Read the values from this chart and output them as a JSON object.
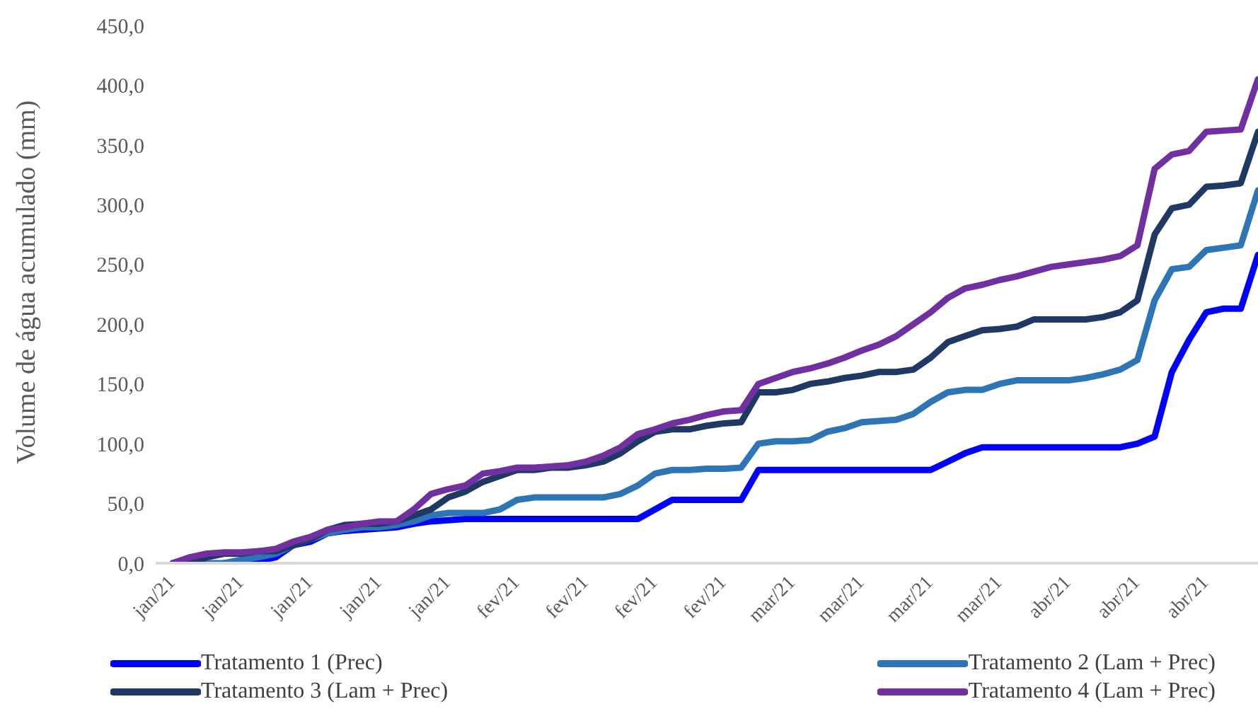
{
  "chart_data": {
    "type": "line",
    "ylabel": "Volume de água acumulado (mm)",
    "categories": [
      "jan/21",
      null,
      null,
      null,
      "jan/21",
      null,
      null,
      null,
      "jan/21",
      null,
      null,
      null,
      "jan/21",
      null,
      null,
      null,
      "jan/21",
      null,
      null,
      null,
      "fev/21",
      null,
      null,
      null,
      "fev/21",
      null,
      null,
      null,
      "fev/21",
      null,
      null,
      null,
      "fev/21",
      null,
      null,
      null,
      "mar/21",
      null,
      null,
      null,
      "mar/21",
      null,
      null,
      null,
      "mar/21",
      null,
      null,
      null,
      "mar/21",
      null,
      null,
      null,
      "abr/21",
      null,
      null,
      null,
      "abr/21",
      null,
      null,
      null,
      "abr/21",
      null,
      null,
      null
    ],
    "ylim": [
      0,
      450
    ],
    "yticks": [
      {
        "value": 0,
        "label": "0,0"
      },
      {
        "value": 50,
        "label": "50,0"
      },
      {
        "value": 100,
        "label": "100,0"
      },
      {
        "value": 150,
        "label": "150,0"
      },
      {
        "value": 200,
        "label": "200,0"
      },
      {
        "value": 250,
        "label": "250,0"
      },
      {
        "value": 300,
        "label": "300,0"
      },
      {
        "value": 350,
        "label": "350,0"
      },
      {
        "value": 400,
        "label": "400,0"
      },
      {
        "value": 450,
        "label": "450,0"
      }
    ],
    "grid": false,
    "legend": "bottom",
    "marker": "none",
    "line_style": "solid",
    "series": [
      {
        "name": "Tratamento 1 (Prec)",
        "color": "#0000ff",
        "values": [
          null,
          null,
          null,
          0,
          0,
          2,
          5,
          15,
          18,
          25,
          27,
          28,
          29,
          30,
          33,
          35,
          36,
          37,
          37,
          37,
          37,
          37,
          37,
          37,
          37,
          37,
          37,
          37,
          45,
          53,
          53,
          53,
          53,
          53,
          78,
          78,
          78,
          78,
          78,
          78,
          78,
          78,
          78,
          78,
          78,
          85,
          92,
          97,
          97,
          97,
          97,
          97,
          97,
          97,
          97,
          97,
          100,
          106,
          160,
          187,
          210,
          213,
          213,
          258
        ]
      },
      {
        "name": "Tratamento 2 (Lam + Prec)",
        "color": "#2e75b6",
        "values": [
          0,
          0,
          0,
          0,
          3,
          5,
          8,
          15,
          20,
          25,
          28,
          30,
          30,
          32,
          35,
          40,
          42,
          42,
          42,
          45,
          53,
          55,
          55,
          55,
          55,
          55,
          58,
          65,
          75,
          78,
          78,
          79,
          79,
          80,
          100,
          102,
          102,
          103,
          110,
          113,
          118,
          119,
          120,
          125,
          135,
          143,
          145,
          145,
          150,
          153,
          153,
          153,
          153,
          155,
          158,
          162,
          170,
          220,
          246,
          248,
          262,
          264,
          266,
          312
        ]
      },
      {
        "name": "Tratamento 3 (Lam + Prec)",
        "color": "#1f3864",
        "values": [
          0,
          0,
          5,
          8,
          8,
          10,
          10,
          15,
          20,
          28,
          32,
          33,
          33,
          35,
          40,
          45,
          55,
          60,
          68,
          73,
          78,
          78,
          80,
          80,
          82,
          85,
          92,
          102,
          110,
          112,
          112,
          115,
          117,
          118,
          143,
          143,
          145,
          150,
          152,
          155,
          157,
          160,
          160,
          162,
          172,
          185,
          190,
          195,
          196,
          198,
          204,
          204,
          204,
          204,
          206,
          210,
          220,
          275,
          297,
          300,
          315,
          316,
          318,
          361
        ]
      },
      {
        "name": "Tratamento 4 (Lam + Prec)",
        "color": "#7030a0",
        "values": [
          0,
          5,
          8,
          9,
          9,
          10,
          12,
          18,
          22,
          28,
          30,
          33,
          35,
          35,
          45,
          58,
          62,
          65,
          75,
          77,
          80,
          80,
          81,
          82,
          85,
          90,
          97,
          108,
          112,
          117,
          120,
          124,
          127,
          128,
          150,
          155,
          160,
          163,
          167,
          172,
          178,
          183,
          190,
          200,
          210,
          222,
          230,
          233,
          237,
          240,
          244,
          248,
          250,
          252,
          254,
          257,
          266,
          330,
          342,
          345,
          361,
          362,
          363,
          405
        ]
      }
    ]
  }
}
